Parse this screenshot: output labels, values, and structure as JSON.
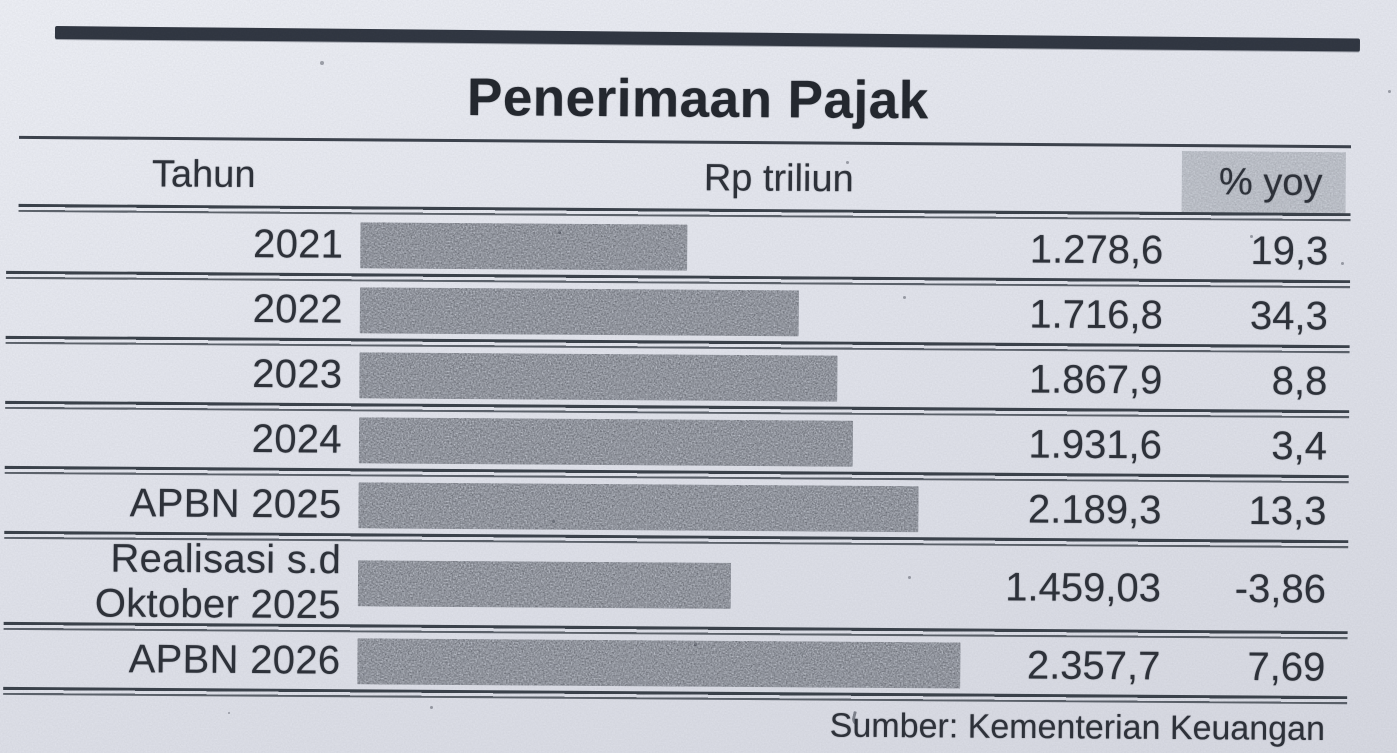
{
  "title": "Penerimaan Pajak",
  "columns": {
    "year": "Tahun",
    "amount": "Rp triliun",
    "yoy": "% yoy"
  },
  "table": {
    "rows": [
      {
        "label": "2021",
        "amount": "1.278,6",
        "yoy": "19,3",
        "value": 1278.6
      },
      {
        "label": "2022",
        "amount": "1.716,8",
        "yoy": "34,3",
        "value": 1716.8
      },
      {
        "label": "2023",
        "amount": "1.867,9",
        "yoy": "8,8",
        "value": 1867.9
      },
      {
        "label": "2024",
        "amount": "1.931,6",
        "yoy": "3,4",
        "value": 1931.6
      },
      {
        "label": "APBN 2025",
        "amount": "2.189,3",
        "yoy": "13,3",
        "value": 2189.3
      },
      {
        "label": "Realisasi s.d",
        "label2": "Oktober 2025",
        "amount": "1.459,03",
        "yoy": "-3,86",
        "value": 1459.03
      },
      {
        "label": "APBN 2026",
        "amount": "2.357,7",
        "yoy": "7,69",
        "value": 2357.7
      }
    ]
  },
  "source": "Sumber: Kementerian Keuangan",
  "theme": {
    "paper": "#e1e3eb",
    "ink": "#2c3038",
    "rule": "#3b414b",
    "top_rule": "#2f3540",
    "bar_base": "#bcc0c9",
    "header_shade": "#cdd1d9"
  },
  "chart_data": {
    "type": "bar",
    "orientation": "horizontal",
    "title": "Penerimaan Pajak",
    "categories": [
      "2021",
      "2022",
      "2023",
      "2024",
      "APBN 2025",
      "Realisasi s.d Oktober 2025",
      "APBN 2026"
    ],
    "series": [
      {
        "name": "Rp triliun",
        "values": [
          1278.6,
          1716.8,
          1867.9,
          1931.6,
          2189.3,
          1459.03,
          2357.7
        ]
      },
      {
        "name": "% yoy",
        "values": [
          19.3,
          34.3,
          8.8,
          3.4,
          13.3,
          -3.86,
          7.69
        ]
      }
    ],
    "bars_represent": "Rp triliun",
    "grid": false,
    "legend": false,
    "source": "Sumber: Kementerian Keuangan"
  }
}
